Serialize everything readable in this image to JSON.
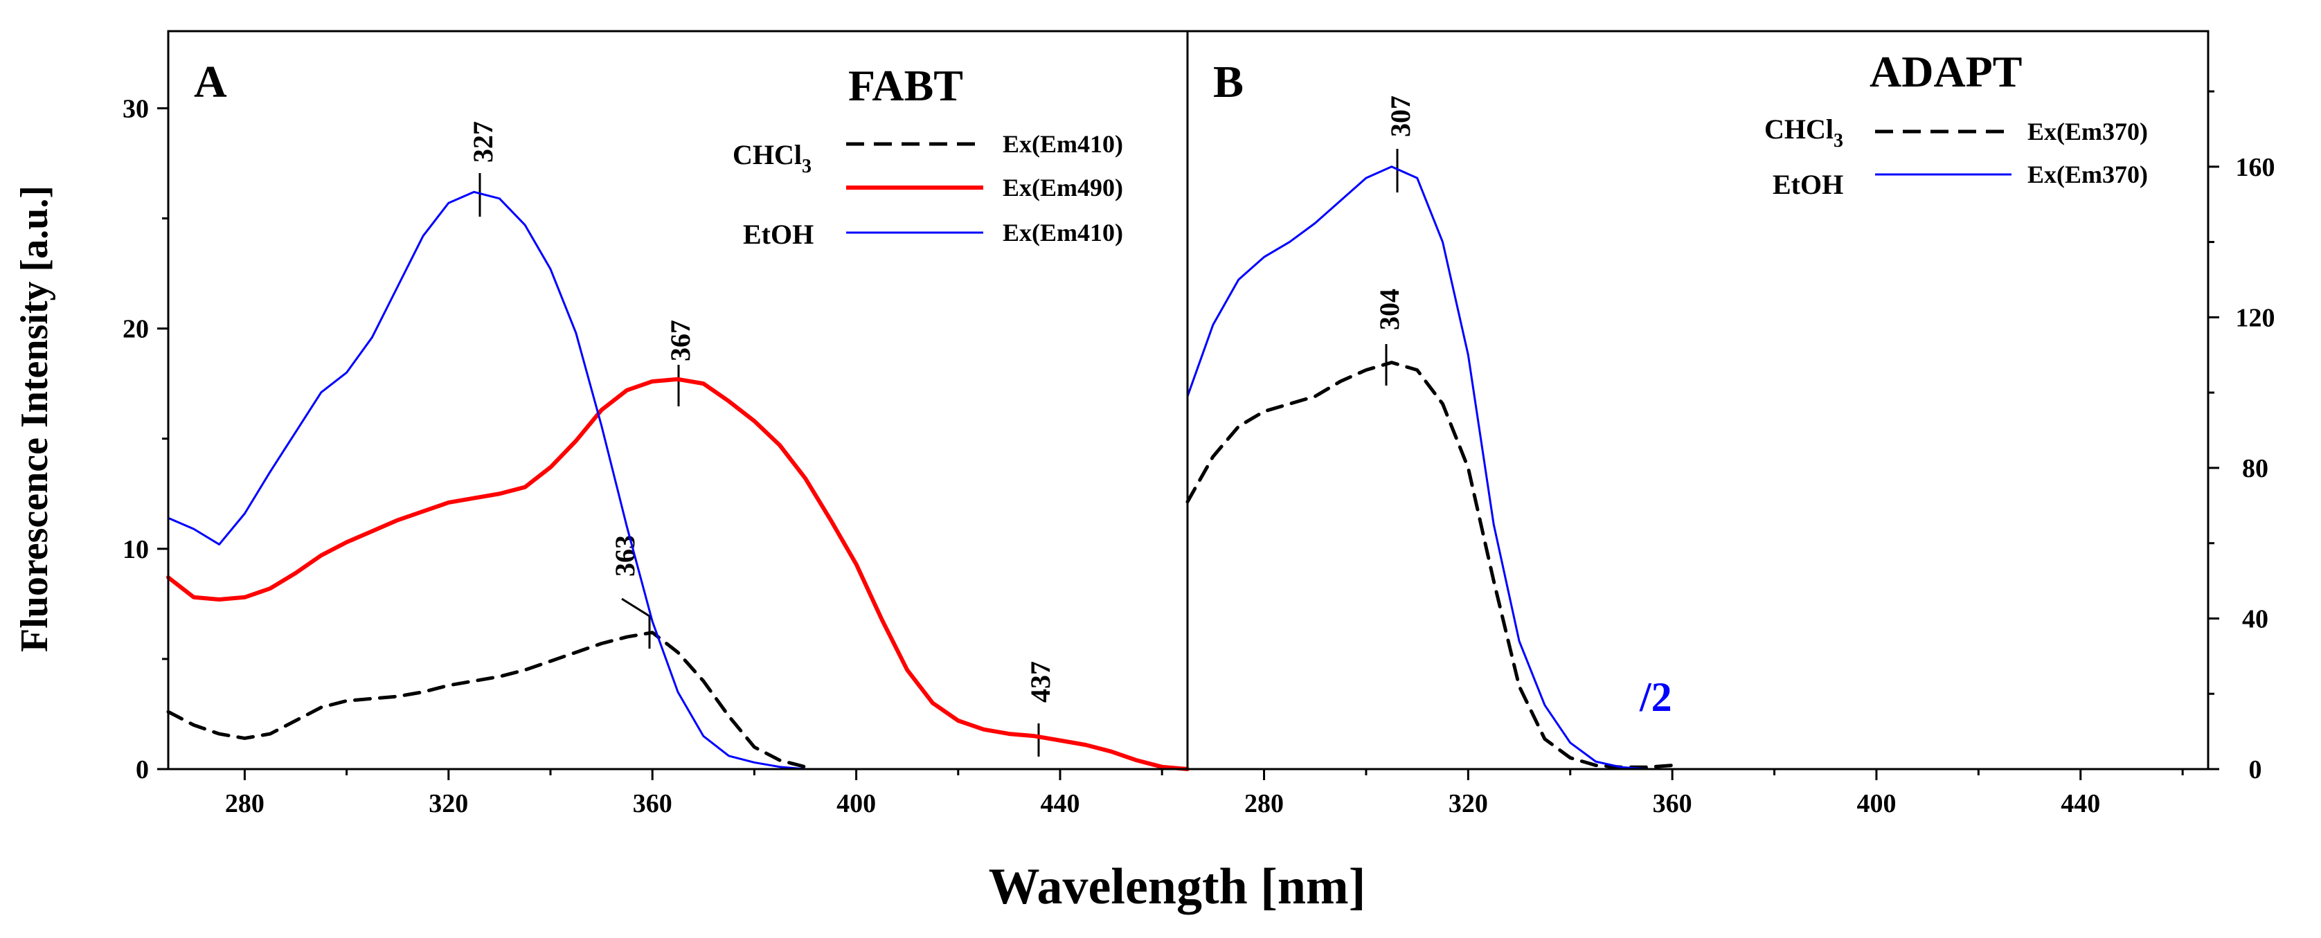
{
  "figure": {
    "ylabel": "Fluorescence Intensity [a.u.]",
    "xlabel": "Wavelength [nm]"
  },
  "chart_data": [
    {
      "type": "line",
      "panel": "A",
      "title": "FABT",
      "xlim": [
        265,
        465
      ],
      "ylim": [
        0,
        33.5
      ],
      "yticks": [
        0,
        10,
        20,
        30
      ],
      "xticks": [
        280,
        320,
        360,
        400,
        440
      ],
      "legend": {
        "placement": "top-right",
        "solvents": [
          "CHCl3",
          "",
          "EtOH"
        ],
        "descriptors": [
          "Ex(Em410)",
          "Ex(Em490)",
          "Ex(Em410)"
        ]
      },
      "annotations": [
        "327",
        "367",
        "363",
        "437"
      ],
      "series": [
        {
          "name": "CHCl3 Ex(Em410)",
          "color": "#000000",
          "dash": true,
          "x": [
            265,
            270,
            275,
            280,
            285,
            290,
            295,
            300,
            305,
            310,
            315,
            320,
            325,
            330,
            335,
            340,
            345,
            350,
            355,
            360,
            365,
            370,
            375,
            380,
            385,
            390
          ],
          "y": [
            2.6,
            2.0,
            1.6,
            1.4,
            1.6,
            2.2,
            2.8,
            3.1,
            3.2,
            3.3,
            3.5,
            3.8,
            4.0,
            4.2,
            4.5,
            4.9,
            5.3,
            5.7,
            6.0,
            6.2,
            5.3,
            4.0,
            2.4,
            1.0,
            0.4,
            0.1
          ]
        },
        {
          "name": "CHCl3 Ex(Em490)",
          "color": "#ff0000",
          "dash": false,
          "x": [
            265,
            270,
            275,
            280,
            285,
            290,
            295,
            300,
            305,
            310,
            315,
            320,
            325,
            330,
            335,
            340,
            345,
            350,
            355,
            360,
            365,
            370,
            375,
            380,
            385,
            390,
            395,
            400,
            405,
            410,
            415,
            420,
            425,
            430,
            435,
            440,
            445,
            450,
            455,
            460,
            465
          ],
          "y": [
            8.7,
            7.8,
            7.7,
            7.8,
            8.2,
            8.9,
            9.7,
            10.3,
            10.8,
            11.3,
            11.7,
            12.1,
            12.3,
            12.5,
            12.8,
            13.7,
            14.9,
            16.3,
            17.2,
            17.6,
            17.7,
            17.5,
            16.7,
            15.8,
            14.7,
            13.2,
            11.3,
            9.3,
            6.8,
            4.5,
            3.0,
            2.2,
            1.8,
            1.6,
            1.5,
            1.3,
            1.1,
            0.8,
            0.4,
            0.1,
            0.0
          ]
        },
        {
          "name": "EtOH Ex(Em410)",
          "color": "#0000ff",
          "dash": false,
          "x": [
            265,
            270,
            275,
            280,
            285,
            290,
            295,
            300,
            305,
            310,
            315,
            320,
            325,
            330,
            335,
            340,
            345,
            350,
            355,
            360,
            365,
            370,
            375,
            380,
            385,
            390
          ],
          "y": [
            11.4,
            10.9,
            10.2,
            11.6,
            13.5,
            15.3,
            17.1,
            18.0,
            19.6,
            21.9,
            24.2,
            25.7,
            26.2,
            25.9,
            24.7,
            22.7,
            19.8,
            15.6,
            11.0,
            6.7,
            3.5,
            1.5,
            0.6,
            0.3,
            0.1,
            0.0
          ]
        }
      ]
    },
    {
      "type": "line",
      "panel": "B",
      "title": "ADAPT",
      "xlim": [
        265,
        465
      ],
      "ylim": [
        0,
        196
      ],
      "yticks": [
        0,
        40,
        80,
        120,
        160
      ],
      "xticks": [
        280,
        320,
        360,
        400,
        440
      ],
      "legend": {
        "placement": "top-right",
        "solvents": [
          "CHCl3",
          "EtOH"
        ],
        "descriptors": [
          "Ex(Em370)",
          "Ex(Em370)"
        ]
      },
      "annotations": [
        "307",
        "304",
        "/2"
      ],
      "series": [
        {
          "name": "CHCl3 Ex(Em370)",
          "color": "#000000",
          "dash": true,
          "x": [
            265,
            270,
            275,
            280,
            285,
            290,
            295,
            300,
            305,
            310,
            315,
            320,
            325,
            330,
            335,
            340,
            345,
            350,
            355,
            360
          ],
          "y": [
            71,
            83,
            91,
            95,
            97,
            99,
            103,
            106,
            108,
            106,
            97,
            80,
            50,
            22,
            8,
            3,
            1,
            0.5,
            0.5,
            1
          ]
        },
        {
          "name": "EtOH Ex(Em370)",
          "color": "#0000ff",
          "dash": false,
          "x": [
            265,
            270,
            275,
            280,
            285,
            290,
            295,
            300,
            305,
            310,
            315,
            320,
            325,
            330,
            335,
            340,
            345,
            350,
            355
          ],
          "y": [
            99,
            118,
            130,
            136,
            140,
            145,
            151,
            157,
            160,
            157,
            140,
            110,
            65,
            34,
            17,
            7,
            2,
            0.5,
            0
          ]
        }
      ]
    }
  ]
}
